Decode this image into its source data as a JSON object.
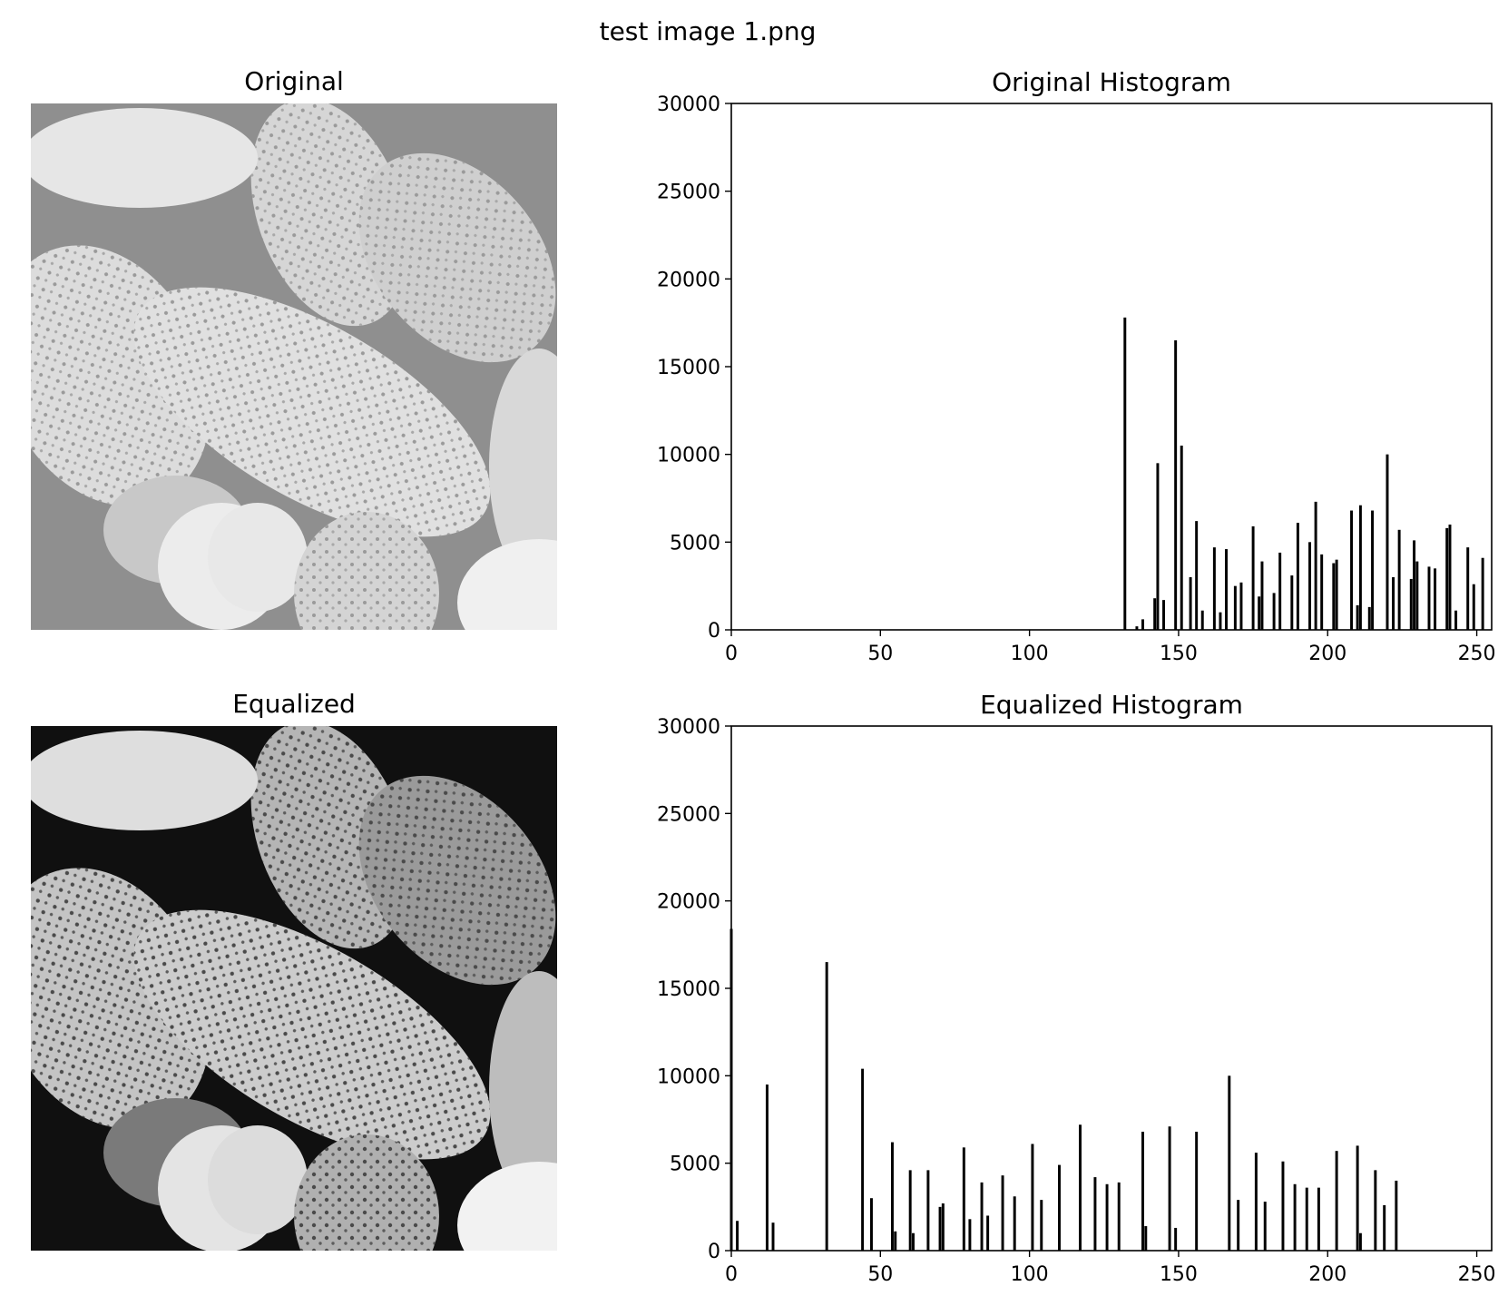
{
  "figure_title": "test image 1.png",
  "panels": {
    "original_image_title": "Original",
    "equalized_image_title": "Equalized"
  },
  "chart_data": [
    {
      "type": "bar",
      "title": "Original Histogram",
      "xlabel": "",
      "ylabel": "",
      "xlim": [
        0,
        255
      ],
      "ylim": [
        0,
        30000
      ],
      "xticks": [
        0,
        50,
        100,
        150,
        200,
        250
      ],
      "yticks": [
        0,
        5000,
        10000,
        15000,
        20000,
        25000,
        30000
      ],
      "grid": false,
      "color": "#000000",
      "x": [
        132,
        136,
        138,
        142,
        143,
        145,
        149,
        151,
        154,
        156,
        158,
        162,
        164,
        166,
        169,
        171,
        175,
        177,
        178,
        182,
        184,
        188,
        190,
        194,
        196,
        198,
        202,
        203,
        208,
        210,
        211,
        214,
        215,
        220,
        222,
        224,
        228,
        229,
        230,
        234,
        236,
        240,
        241,
        243,
        247,
        249,
        252
      ],
      "values": [
        17800,
        200,
        600,
        1800,
        9500,
        1700,
        16500,
        10500,
        3000,
        6200,
        1100,
        4700,
        1000,
        4600,
        2500,
        2700,
        5900,
        1900,
        3900,
        2100,
        4400,
        3100,
        6100,
        5000,
        7300,
        4300,
        3800,
        4000,
        6800,
        1400,
        7100,
        1300,
        6800,
        10000,
        3000,
        5700,
        2900,
        5100,
        3900,
        3600,
        3500,
        5800,
        6000,
        1100,
        4700,
        2600,
        4100
      ]
    },
    {
      "type": "bar",
      "title": "Equalized Histogram",
      "xlabel": "",
      "ylabel": "",
      "xlim": [
        0,
        255
      ],
      "ylim": [
        0,
        30000
      ],
      "xticks": [
        0,
        50,
        100,
        150,
        200,
        250
      ],
      "yticks": [
        0,
        5000,
        10000,
        15000,
        20000,
        25000,
        30000
      ],
      "grid": false,
      "color": "#000000",
      "x": [
        0,
        2,
        12,
        14,
        32,
        44,
        47,
        54,
        55,
        60,
        61,
        66,
        70,
        71,
        78,
        80,
        84,
        86,
        91,
        95,
        101,
        104,
        110,
        117,
        122,
        126,
        130,
        138,
        139,
        147,
        149,
        156,
        167,
        170,
        176,
        179,
        185,
        189,
        193,
        197,
        203,
        210,
        211,
        216,
        219,
        223
      ],
      "values": [
        18400,
        1700,
        9500,
        1600,
        16500,
        10400,
        3000,
        6200,
        1100,
        4600,
        1000,
        4600,
        2500,
        2700,
        5900,
        1800,
        3900,
        2000,
        4300,
        3100,
        6100,
        2900,
        4900,
        7200,
        4200,
        3800,
        3900,
        6800,
        1400,
        7100,
        1300,
        6800,
        10000,
        2900,
        5600,
        2800,
        5100,
        3800,
        3600,
        3600,
        5700,
        6000,
        1000,
        4600,
        2600,
        4000
      ]
    }
  ]
}
